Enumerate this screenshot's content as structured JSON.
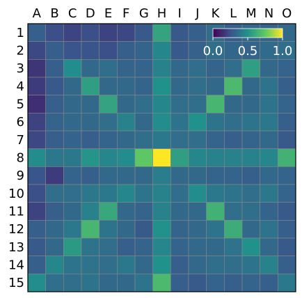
{
  "chart_data": {
    "type": "heatmap",
    "title": "",
    "xlabel": "",
    "ylabel": "",
    "x_labels": [
      "A",
      "B",
      "C",
      "D",
      "E",
      "F",
      "G",
      "H",
      "I",
      "J",
      "K",
      "L",
      "M",
      "N",
      "O"
    ],
    "y_labels": [
      "1",
      "2",
      "3",
      "4",
      "5",
      "6",
      "7",
      "8",
      "9",
      "10",
      "11",
      "12",
      "13",
      "14",
      "15"
    ],
    "value_range": [
      0.0,
      1.0
    ],
    "colormap": "viridis",
    "grid": true,
    "colorbar": {
      "placement": "top-right",
      "tick_labels": [
        "0.0",
        "0.5",
        "1.0"
      ],
      "tick_values": [
        0.0,
        0.5,
        1.0
      ],
      "label_color": "#ffffff"
    },
    "values": [
      [
        0.3,
        0.24,
        0.21,
        0.24,
        0.2,
        0.22,
        0.28,
        0.58,
        0.28,
        0.3,
        0.36,
        0.3,
        0.33,
        0.32,
        0.34
      ],
      [
        0.22,
        0.3,
        0.26,
        0.26,
        0.24,
        0.3,
        0.32,
        0.46,
        0.28,
        0.31,
        0.36,
        0.33,
        0.32,
        0.35,
        0.36
      ],
      [
        0.16,
        0.3,
        0.48,
        0.34,
        0.36,
        0.32,
        0.32,
        0.44,
        0.34,
        0.36,
        0.32,
        0.36,
        0.56,
        0.34,
        0.32
      ],
      [
        0.18,
        0.28,
        0.34,
        0.56,
        0.34,
        0.34,
        0.32,
        0.5,
        0.34,
        0.36,
        0.34,
        0.68,
        0.34,
        0.38,
        0.3
      ],
      [
        0.14,
        0.3,
        0.34,
        0.34,
        0.58,
        0.34,
        0.36,
        0.46,
        0.36,
        0.36,
        0.66,
        0.34,
        0.34,
        0.38,
        0.32
      ],
      [
        0.2,
        0.32,
        0.34,
        0.34,
        0.36,
        0.44,
        0.34,
        0.48,
        0.38,
        0.5,
        0.38,
        0.36,
        0.38,
        0.4,
        0.3
      ],
      [
        0.22,
        0.3,
        0.32,
        0.3,
        0.32,
        0.34,
        0.36,
        0.4,
        0.36,
        0.36,
        0.32,
        0.3,
        0.32,
        0.34,
        0.28
      ],
      [
        0.48,
        0.4,
        0.4,
        0.52,
        0.46,
        0.48,
        0.74,
        1.0,
        0.56,
        0.46,
        0.44,
        0.44,
        0.44,
        0.46,
        0.64
      ],
      [
        0.26,
        0.18,
        0.32,
        0.3,
        0.34,
        0.34,
        0.34,
        0.42,
        0.34,
        0.34,
        0.32,
        0.32,
        0.3,
        0.34,
        0.32
      ],
      [
        0.24,
        0.36,
        0.36,
        0.4,
        0.4,
        0.46,
        0.38,
        0.44,
        0.36,
        0.48,
        0.4,
        0.38,
        0.36,
        0.4,
        0.32
      ],
      [
        0.2,
        0.3,
        0.34,
        0.44,
        0.6,
        0.34,
        0.32,
        0.44,
        0.34,
        0.34,
        0.64,
        0.36,
        0.36,
        0.32,
        0.28
      ],
      [
        0.3,
        0.34,
        0.4,
        0.66,
        0.38,
        0.34,
        0.28,
        0.5,
        0.32,
        0.34,
        0.38,
        0.62,
        0.34,
        0.38,
        0.3
      ],
      [
        0.28,
        0.34,
        0.54,
        0.38,
        0.36,
        0.3,
        0.32,
        0.46,
        0.32,
        0.34,
        0.34,
        0.38,
        0.5,
        0.34,
        0.28
      ],
      [
        0.3,
        0.46,
        0.38,
        0.38,
        0.36,
        0.4,
        0.34,
        0.5,
        0.3,
        0.34,
        0.36,
        0.36,
        0.38,
        0.44,
        0.3
      ],
      [
        0.48,
        0.36,
        0.36,
        0.38,
        0.34,
        0.34,
        0.38,
        0.68,
        0.3,
        0.28,
        0.32,
        0.3,
        0.32,
        0.3,
        0.4
      ]
    ]
  }
}
